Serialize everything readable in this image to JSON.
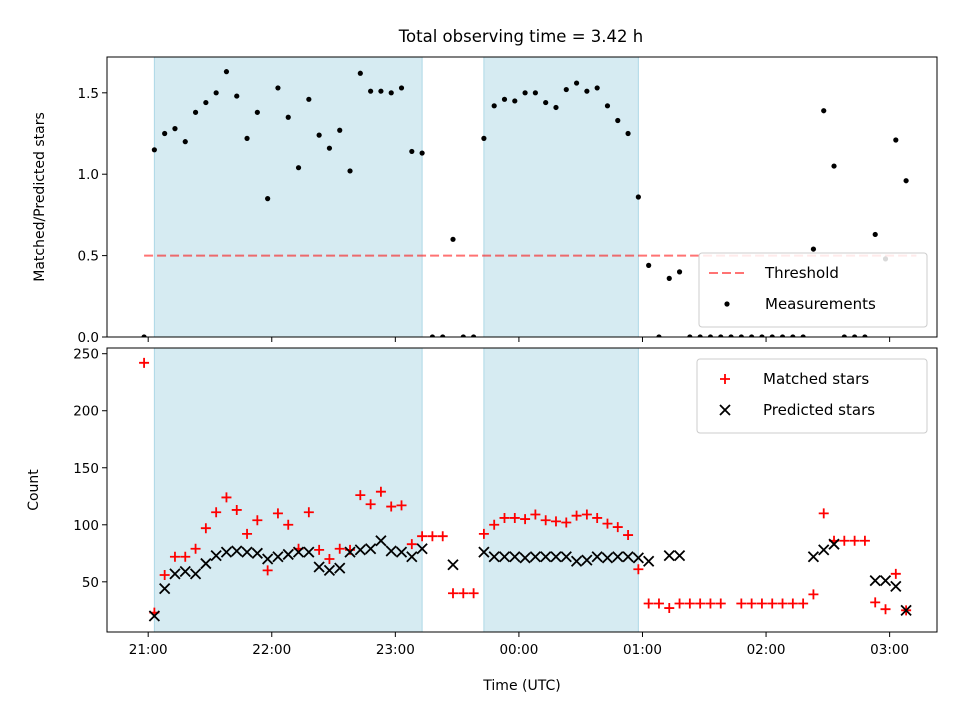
{
  "title": "Total observing time = 3.42 h",
  "colors": {
    "shade": "#add8e6",
    "threshold": "#ff0000",
    "measurement": "#000000",
    "matched": "#ff0000",
    "predicted": "#000000"
  },
  "chart_data": [
    {
      "type": "scatter",
      "title": "Total observing time = 3.42 h",
      "xlabel": "",
      "ylabel": "Matched/Predicted stars",
      "xlim": [
        "20:40",
        "03:23"
      ],
      "ylim": [
        0,
        1.72
      ],
      "yticks": [
        "0.0",
        "0.5",
        "1.0",
        "1.5"
      ],
      "xticks": [
        "21:00",
        "22:00",
        "23:00",
        "00:00",
        "01:00",
        "02:00",
        "03:00"
      ],
      "grid": false,
      "legend_position": "lower-right",
      "shaded_intervals": [
        [
          "21:03",
          "23:13"
        ],
        [
          "23:43",
          "00:58"
        ]
      ],
      "threshold": {
        "name": "Threshold",
        "value": 0.5,
        "x": [
          "20:58",
          "03:13"
        ],
        "style": "dashed"
      },
      "series": [
        {
          "name": "Measurements",
          "points": [
            [
              "20:58",
              0
            ],
            [
              "21:03",
              1.15
            ],
            [
              "21:08",
              1.25
            ],
            [
              "21:13",
              1.28
            ],
            [
              "21:18",
              1.2
            ],
            [
              "21:23",
              1.38
            ],
            [
              "21:28",
              1.44
            ],
            [
              "21:33",
              1.5
            ],
            [
              "21:38",
              1.63
            ],
            [
              "21:43",
              1.48
            ],
            [
              "21:48",
              1.22
            ],
            [
              "21:53",
              1.38
            ],
            [
              "21:58",
              0.85
            ],
            [
              "22:03",
              1.53
            ],
            [
              "22:08",
              1.35
            ],
            [
              "22:13",
              1.04
            ],
            [
              "22:18",
              1.46
            ],
            [
              "22:23",
              1.24
            ],
            [
              "22:28",
              1.16
            ],
            [
              "22:33",
              1.27
            ],
            [
              "22:38",
              1.02
            ],
            [
              "22:43",
              1.62
            ],
            [
              "22:48",
              1.51
            ],
            [
              "22:53",
              1.51
            ],
            [
              "22:58",
              1.5
            ],
            [
              "23:03",
              1.53
            ],
            [
              "23:08",
              1.14
            ],
            [
              "23:13",
              1.13
            ],
            [
              "23:18",
              0
            ],
            [
              "23:23",
              0
            ],
            [
              "23:28",
              0.6
            ],
            [
              "23:33",
              0
            ],
            [
              "23:38",
              0
            ],
            [
              "23:43",
              1.22
            ],
            [
              "23:48",
              1.42
            ],
            [
              "23:53",
              1.46
            ],
            [
              "23:58",
              1.45
            ],
            [
              "00:03",
              1.5
            ],
            [
              "00:08",
              1.5
            ],
            [
              "00:13",
              1.44
            ],
            [
              "00:18",
              1.41
            ],
            [
              "00:23",
              1.52
            ],
            [
              "00:28",
              1.56
            ],
            [
              "00:33",
              1.51
            ],
            [
              "00:38",
              1.53
            ],
            [
              "00:43",
              1.42
            ],
            [
              "00:48",
              1.33
            ],
            [
              "00:53",
              1.25
            ],
            [
              "00:58",
              0.86
            ],
            [
              "01:03",
              0.44
            ],
            [
              "01:08",
              0
            ],
            [
              "01:13",
              0.36
            ],
            [
              "01:18",
              0.4
            ],
            [
              "01:23",
              0
            ],
            [
              "01:28",
              0
            ],
            [
              "01:33",
              0
            ],
            [
              "01:38",
              0
            ],
            [
              "01:43",
              0
            ],
            [
              "01:48",
              0
            ],
            [
              "01:53",
              0
            ],
            [
              "01:58",
              0
            ],
            [
              "02:03",
              0
            ],
            [
              "02:08",
              0
            ],
            [
              "02:13",
              0
            ],
            [
              "02:18",
              0
            ],
            [
              "02:23",
              0.54
            ],
            [
              "02:28",
              1.39
            ],
            [
              "02:33",
              1.05
            ],
            [
              "02:38",
              0
            ],
            [
              "02:43",
              0
            ],
            [
              "02:48",
              0
            ],
            [
              "02:53",
              0.63
            ],
            [
              "02:58",
              0.48
            ],
            [
              "03:03",
              1.21
            ],
            [
              "03:08",
              0.96
            ]
          ]
        }
      ]
    },
    {
      "type": "scatter",
      "xlabel": "Time (UTC)",
      "ylabel": "Count",
      "xlim": [
        "20:40",
        "03:23"
      ],
      "ylim": [
        6,
        255
      ],
      "yticks": [
        "50",
        "100",
        "150",
        "200",
        "250"
      ],
      "xticks": [
        "21:00",
        "22:00",
        "23:00",
        "00:00",
        "01:00",
        "02:00",
        "03:00"
      ],
      "grid": false,
      "legend_position": "upper-right",
      "shaded_intervals": [
        [
          "21:03",
          "23:13"
        ],
        [
          "23:43",
          "00:58"
        ]
      ],
      "series": [
        {
          "name": "Matched stars",
          "marker": "plus",
          "points": [
            [
              "20:58",
              242
            ],
            [
              "21:03",
              23
            ],
            [
              "21:08",
              56
            ],
            [
              "21:13",
              72
            ],
            [
              "21:18",
              72
            ],
            [
              "21:23",
              79
            ],
            [
              "21:28",
              97
            ],
            [
              "21:33",
              111
            ],
            [
              "21:38",
              124
            ],
            [
              "21:43",
              113
            ],
            [
              "21:48",
              92
            ],
            [
              "21:53",
              104
            ],
            [
              "21:58",
              60
            ],
            [
              "22:03",
              110
            ],
            [
              "22:08",
              100
            ],
            [
              "22:13",
              79
            ],
            [
              "22:18",
              111
            ],
            [
              "22:23",
              78
            ],
            [
              "22:28",
              70
            ],
            [
              "22:33",
              79
            ],
            [
              "22:38",
              78
            ],
            [
              "22:43",
              126
            ],
            [
              "22:48",
              118
            ],
            [
              "22:53",
              129
            ],
            [
              "22:58",
              116
            ],
            [
              "23:03",
              117
            ],
            [
              "23:08",
              83
            ],
            [
              "23:13",
              90
            ],
            [
              "23:18",
              90
            ],
            [
              "23:23",
              90
            ],
            [
              "23:28",
              40
            ],
            [
              "23:33",
              40
            ],
            [
              "23:38",
              40
            ],
            [
              "23:43",
              92
            ],
            [
              "23:48",
              100
            ],
            [
              "23:53",
              106
            ],
            [
              "23:58",
              106
            ],
            [
              "00:03",
              105
            ],
            [
              "00:08",
              109
            ],
            [
              "00:13",
              104
            ],
            [
              "00:18",
              103
            ],
            [
              "00:23",
              102
            ],
            [
              "00:28",
              108
            ],
            [
              "00:33",
              109
            ],
            [
              "00:38",
              106
            ],
            [
              "00:43",
              101
            ],
            [
              "00:48",
              98
            ],
            [
              "00:53",
              91
            ],
            [
              "00:58",
              61
            ],
            [
              "01:03",
              31
            ],
            [
              "01:08",
              31
            ],
            [
              "01:13",
              27
            ],
            [
              "01:18",
              31
            ],
            [
              "01:23",
              31
            ],
            [
              "01:28",
              31
            ],
            [
              "01:33",
              31
            ],
            [
              "01:38",
              31
            ],
            [
              "01:48",
              31
            ],
            [
              "01:53",
              31
            ],
            [
              "01:58",
              31
            ],
            [
              "02:03",
              31
            ],
            [
              "02:08",
              31
            ],
            [
              "02:13",
              31
            ],
            [
              "02:18",
              31
            ],
            [
              "02:23",
              39
            ],
            [
              "02:28",
              110
            ],
            [
              "02:33",
              86
            ],
            [
              "02:38",
              86
            ],
            [
              "02:43",
              86
            ],
            [
              "02:48",
              86
            ],
            [
              "02:53",
              32
            ],
            [
              "02:58",
              26
            ],
            [
              "03:03",
              57
            ],
            [
              "03:08",
              25
            ]
          ]
        },
        {
          "name": "Predicted stars",
          "marker": "x",
          "points": [
            [
              "21:03",
              20
            ],
            [
              "21:08",
              44
            ],
            [
              "21:13",
              57
            ],
            [
              "21:18",
              59
            ],
            [
              "21:23",
              57
            ],
            [
              "21:28",
              66
            ],
            [
              "21:33",
              73
            ],
            [
              "21:38",
              76
            ],
            [
              "21:43",
              77
            ],
            [
              "21:48",
              76
            ],
            [
              "21:53",
              75
            ],
            [
              "21:58",
              70
            ],
            [
              "22:03",
              72
            ],
            [
              "22:08",
              74
            ],
            [
              "22:13",
              76
            ],
            [
              "22:18",
              76
            ],
            [
              "22:23",
              63
            ],
            [
              "22:28",
              60
            ],
            [
              "22:33",
              62
            ],
            [
              "22:38",
              76
            ],
            [
              "22:43",
              78
            ],
            [
              "22:48",
              79
            ],
            [
              "22:53",
              86
            ],
            [
              "22:58",
              77
            ],
            [
              "23:03",
              76
            ],
            [
              "23:08",
              72
            ],
            [
              "23:13",
              79
            ],
            [
              "23:28",
              65
            ],
            [
              "23:43",
              76
            ],
            [
              "23:48",
              72
            ],
            [
              "23:53",
              72
            ],
            [
              "23:58",
              72
            ],
            [
              "00:03",
              71
            ],
            [
              "00:08",
              72
            ],
            [
              "00:13",
              72
            ],
            [
              "00:18",
              72
            ],
            [
              "00:23",
              72
            ],
            [
              "00:28",
              68
            ],
            [
              "00:33",
              69
            ],
            [
              "00:38",
              72
            ],
            [
              "00:43",
              71
            ],
            [
              "00:48",
              72
            ],
            [
              "00:53",
              72
            ],
            [
              "00:58",
              71
            ],
            [
              "01:03",
              68
            ],
            [
              "01:13",
              73
            ],
            [
              "01:18",
              73
            ],
            [
              "02:23",
              72
            ],
            [
              "02:28",
              78
            ],
            [
              "02:33",
              83
            ],
            [
              "02:53",
              51
            ],
            [
              "02:58",
              51
            ],
            [
              "03:03",
              46
            ],
            [
              "03:08",
              25
            ]
          ]
        }
      ]
    }
  ]
}
